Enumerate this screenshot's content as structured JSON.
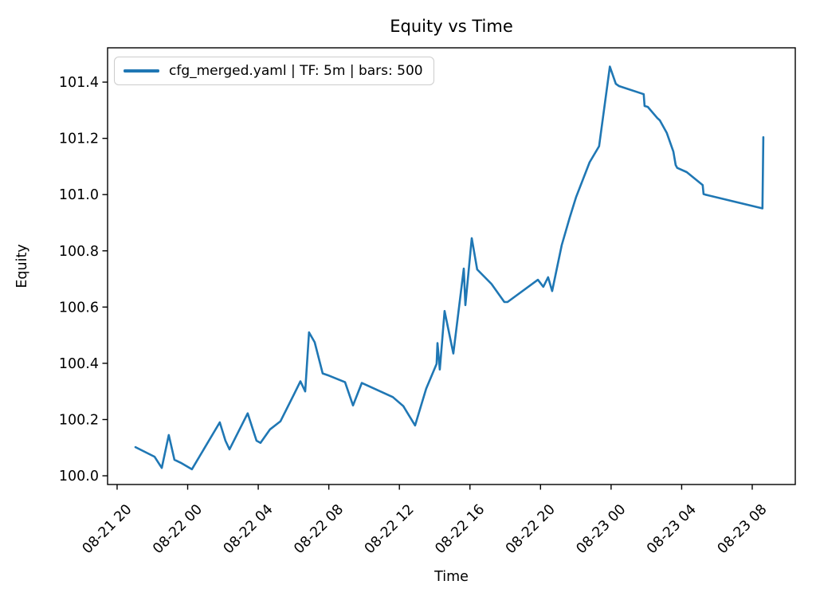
{
  "chart_data": {
    "type": "line",
    "title": "Equity vs Time",
    "xlabel": "Time",
    "ylabel": "Equity",
    "grid": false,
    "legend_position": "upper left",
    "x_unit": "hours since 08-21 20:00",
    "xlim": [
      -0.54,
      38.44
    ],
    "ylim": [
      99.969,
      101.522
    ],
    "x_ticks": {
      "hours": [
        0,
        4,
        8,
        12,
        16,
        20,
        24,
        28,
        32,
        36
      ],
      "labels": [
        "08-21 20",
        "08-22 00",
        "08-22 04",
        "08-22 08",
        "08-22 12",
        "08-22 16",
        "08-22 20",
        "08-23 00",
        "08-23 04",
        "08-23 08"
      ],
      "rotation": 45
    },
    "y_ticks": {
      "values": [
        100.0,
        100.2,
        100.4,
        100.6,
        100.8,
        101.0,
        101.2,
        101.4
      ],
      "labels": [
        "100.0",
        "100.2",
        "100.4",
        "100.6",
        "100.8",
        "101.0",
        "101.2",
        "101.4"
      ]
    },
    "series": [
      {
        "name": "cfg_merged.yaml | TF: 5m | bars: 500",
        "color": "#1f77b4",
        "x": [
          1.04,
          2.12,
          2.53,
          2.93,
          3.25,
          3.61,
          4.24,
          5.82,
          6.14,
          6.37,
          7.4,
          7.9,
          8.13,
          8.67,
          9.26,
          10.03,
          10.39,
          10.66,
          10.88,
          11.2,
          11.65,
          12.01,
          12.92,
          13.37,
          13.87,
          15.63,
          16.22,
          16.89,
          17.52,
          18.11,
          18.16,
          18.29,
          18.56,
          19.06,
          19.65,
          19.74,
          20.1,
          20.41,
          21.22,
          21.95,
          22.13,
          23.85,
          24.16,
          24.43,
          24.66,
          25.2,
          25.65,
          26.01,
          26.78,
          27.32,
          27.93,
          28.27,
          28.45,
          29.85,
          29.9,
          30.08,
          30.62,
          30.76,
          31.16,
          31.53,
          31.66,
          31.75,
          32.29,
          33.19,
          33.24,
          33.33,
          36.58,
          36.63
        ],
        "y": [
          100.102,
          100.068,
          100.028,
          100.145,
          100.057,
          100.046,
          100.023,
          100.19,
          100.125,
          100.094,
          100.222,
          100.125,
          100.117,
          100.165,
          100.194,
          100.29,
          100.336,
          100.3,
          100.51,
          100.475,
          100.364,
          100.356,
          100.333,
          100.25,
          100.33,
          100.28,
          100.248,
          100.179,
          100.31,
          100.398,
          100.472,
          100.378,
          100.586,
          100.435,
          100.737,
          100.607,
          100.845,
          100.734,
          100.682,
          100.618,
          100.618,
          100.697,
          100.672,
          100.706,
          100.657,
          100.82,
          100.917,
          100.99,
          101.115,
          101.172,
          101.455,
          101.394,
          101.386,
          101.357,
          101.315,
          101.312,
          101.272,
          101.264,
          101.219,
          101.153,
          101.105,
          101.095,
          101.08,
          101.034,
          101.002,
          101.0,
          100.951,
          101.204
        ]
      }
    ]
  }
}
